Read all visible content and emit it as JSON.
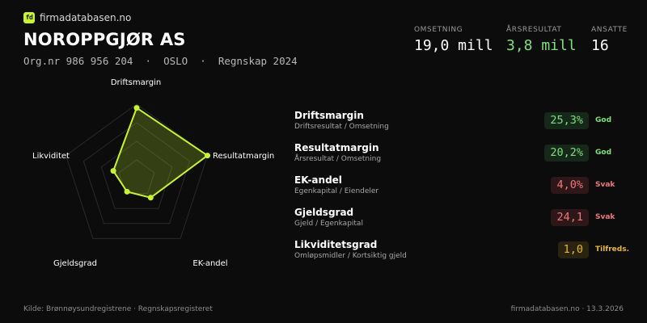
{
  "brand": {
    "logo_text": "fd",
    "name": "firmadatabasen.no",
    "accent": "#c6f432"
  },
  "company": {
    "name": "NOROPPGJØR AS",
    "meta": "Org.nr 986 956 204  ·  OSLO  ·  Regnskap 2024"
  },
  "kpis": [
    {
      "label": "OMSETNING",
      "value": "19,0 mill"
    },
    {
      "label": "ÅRSRESULTAT",
      "value": "3,8 mill",
      "color": "#7ee07a"
    },
    {
      "label": "ANSATTE",
      "value": "16"
    }
  ],
  "radar": {
    "axes": [
      "Driftsmargin",
      "Resultatmargin",
      "EK-andel",
      "Gjeldsgrad",
      "Likviditet"
    ],
    "scores": [
      0.95,
      1.0,
      0.32,
      0.22,
      0.33
    ],
    "rings": 4,
    "fill": "#c6f432"
  },
  "metrics": [
    {
      "title": "Driftsmargin",
      "subtitle": "Driftsresultat / Omsetning",
      "value": "25,3%",
      "status": "God",
      "level": "good"
    },
    {
      "title": "Resultatmargin",
      "subtitle": "Årsresultat / Omsetning",
      "value": "20,2%",
      "status": "God",
      "level": "good"
    },
    {
      "title": "EK-andel",
      "subtitle": "Egenkapital / Eiendeler",
      "value": "4,0%",
      "status": "Svak",
      "level": "weak"
    },
    {
      "title": "Gjeldsgrad",
      "subtitle": "Gjeld / Egenkapital",
      "value": "24,1",
      "status": "Svak",
      "level": "weak"
    },
    {
      "title": "Likviditetsgrad",
      "subtitle": "Omløpsmidler / Kortsiktig gjeld",
      "value": "1,0",
      "status": "Tilfreds.",
      "level": "ok"
    }
  ],
  "footer": {
    "source": "Kilde: Brønnøysundregistrene · Regnskapsregisteret",
    "site_date": "firmadatabasen.no · 13.3.2026"
  }
}
